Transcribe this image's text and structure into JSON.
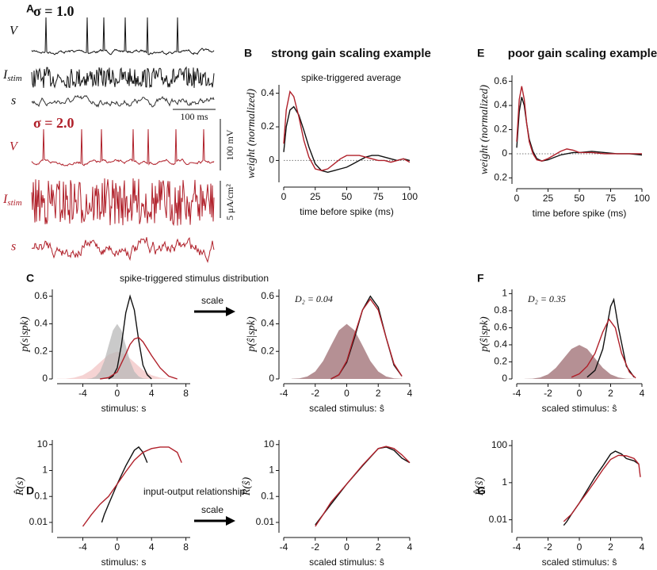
{
  "figure": {
    "panel_A": {
      "label": "A",
      "sigma1": "σ = 1.0",
      "sigma2": "σ = 2.0",
      "v1": "V",
      "i1": "I",
      "i1sub": "stim",
      "s1": "s",
      "time_scale": "100 ms",
      "v2": "V",
      "i2": "I",
      "i2sub": "stim",
      "s2": "s",
      "volt_scale": "100 mV",
      "current_scale": "5 μA/cm²"
    },
    "arrows": [
      "scale",
      "scale"
    ]
  },
  "chart_data": [
    {
      "type": "line",
      "panel": "B",
      "title": "strong gain scaling example",
      "subtitle": "spike-triggered average",
      "xlabel": "time before spike (ms)",
      "ylabel": "weight (normalized)",
      "zero_line": true,
      "xlim": [
        0,
        100
      ],
      "ylim": [
        -0.13,
        0.45
      ],
      "xticks": [
        0,
        25,
        50,
        75,
        100
      ],
      "yticks": [
        0,
        0.2,
        0.4
      ],
      "series": [
        {
          "color": "#111111",
          "x": [
            0,
            2,
            5,
            8,
            12,
            16,
            20,
            25,
            30,
            35,
            40,
            45,
            50,
            55,
            60,
            65,
            70,
            75,
            80,
            85,
            90,
            95,
            100
          ],
          "values": [
            0.05,
            0.2,
            0.3,
            0.32,
            0.27,
            0.18,
            0.08,
            -0.02,
            -0.06,
            -0.07,
            -0.06,
            -0.05,
            -0.04,
            -0.02,
            0,
            0.02,
            0.03,
            0.03,
            0.02,
            0.01,
            0,
            0.01,
            0
          ]
        },
        {
          "color": "#b0202a",
          "x": [
            0,
            2,
            5,
            8,
            12,
            16,
            20,
            25,
            30,
            35,
            40,
            45,
            50,
            55,
            60,
            65,
            70,
            75,
            80,
            85,
            90,
            95,
            100
          ],
          "values": [
            0.1,
            0.3,
            0.41,
            0.38,
            0.26,
            0.12,
            0.02,
            -0.05,
            -0.06,
            -0.05,
            -0.02,
            0.01,
            0.03,
            0.03,
            0.03,
            0.02,
            0.01,
            0,
            0,
            -0.01,
            0,
            0.01,
            -0.01
          ]
        }
      ]
    },
    {
      "type": "line",
      "panel": "E",
      "title": "poor gain scaling example",
      "xlabel": "time before spike (ms)",
      "ylabel": "weight (normalized)",
      "zero_line": true,
      "xlim": [
        0,
        100
      ],
      "ylim": [
        -0.25,
        0.65
      ],
      "xticks": [
        0,
        25,
        50,
        75,
        100
      ],
      "yticks": [
        {
          "value": -0.2,
          "label": "0.2"
        },
        0,
        0.2,
        0.4,
        0.6
      ],
      "series": [
        {
          "color": "#111111",
          "x": [
            0,
            2,
            4,
            6,
            8,
            10,
            13,
            16,
            20,
            25,
            30,
            35,
            40,
            45,
            50,
            60,
            70,
            80,
            90,
            100
          ],
          "values": [
            0.05,
            0.35,
            0.47,
            0.4,
            0.25,
            0.12,
            0.02,
            -0.04,
            -0.06,
            -0.05,
            -0.03,
            -0.01,
            0,
            0.01,
            0.01,
            0.02,
            0.01,
            0,
            0,
            -0.01
          ]
        },
        {
          "color": "#b0202a",
          "x": [
            0,
            2,
            4,
            6,
            8,
            10,
            13,
            16,
            20,
            25,
            30,
            35,
            40,
            45,
            50,
            60,
            70,
            80,
            90,
            100
          ],
          "values": [
            0.1,
            0.45,
            0.56,
            0.45,
            0.25,
            0.1,
            0,
            -0.05,
            -0.06,
            -0.04,
            -0.01,
            0.02,
            0.04,
            0.03,
            0.01,
            0.01,
            0,
            0,
            0,
            0
          ]
        }
      ]
    },
    {
      "type": "line",
      "panel": "C",
      "title": "spike-triggered stimulus distribution",
      "xlabel": "stimulus: s",
      "ylabel": "p(s|spk)",
      "xlim": [
        -7,
        8.5
      ],
      "ylim": [
        0,
        0.65
      ],
      "xticks": [
        -4,
        0,
        4,
        8
      ],
      "yticks": [
        0,
        0.2,
        0.4,
        0.6
      ],
      "series": [
        {
          "area": true,
          "color": "#f2c4c4",
          "x": [
            -7,
            -6,
            -5,
            -4,
            -3,
            -2,
            -1,
            0,
            1,
            2,
            3,
            4,
            5,
            6,
            7
          ],
          "values": [
            0.001,
            0.002,
            0.009,
            0.027,
            0.065,
            0.121,
            0.176,
            0.199,
            0.176,
            0.121,
            0.065,
            0.027,
            0.009,
            0.002,
            0.001
          ]
        },
        {
          "area": true,
          "color": "#b8b8b8",
          "x": [
            -3.5,
            -3,
            -2.5,
            -2,
            -1.5,
            -1,
            -0.5,
            0,
            0.5,
            1,
            1.5,
            2,
            2.5,
            3,
            3.5
          ],
          "values": [
            0.001,
            0.004,
            0.018,
            0.054,
            0.13,
            0.242,
            0.352,
            0.399,
            0.352,
            0.242,
            0.13,
            0.054,
            0.018,
            0.004,
            0.001
          ]
        },
        {
          "color": "#111111",
          "x": [
            -1,
            -0.5,
            0,
            0.5,
            1,
            1.5,
            2,
            2.5,
            3,
            3.5,
            4
          ],
          "values": [
            0,
            0.02,
            0.08,
            0.25,
            0.48,
            0.6,
            0.5,
            0.28,
            0.1,
            0.03,
            0
          ]
        },
        {
          "color": "#b0202a",
          "x": [
            -2,
            -1,
            0,
            1,
            1.5,
            2,
            2.5,
            3,
            4,
            5,
            6,
            7
          ],
          "values": [
            0,
            0.01,
            0.05,
            0.18,
            0.25,
            0.29,
            0.3,
            0.27,
            0.17,
            0.08,
            0.02,
            0
          ]
        }
      ]
    },
    {
      "type": "line",
      "annotation": "D₂ = 0.04",
      "xlabel": "scaled stimulus: ŝ",
      "ylabel": "p(ŝ|spk)",
      "xlim": [
        -4,
        4
      ],
      "ylim": [
        0,
        0.65
      ],
      "xticks": [
        -4,
        -2,
        0,
        2,
        4
      ],
      "yticks": [
        0,
        0.2,
        0.4,
        0.6
      ],
      "series": [
        {
          "area": true,
          "color": "#9c6b70",
          "x": [
            -3.5,
            -3,
            -2.5,
            -2,
            -1.5,
            -1,
            -0.5,
            0,
            0.5,
            1,
            1.5,
            2,
            2.5,
            3,
            3.5
          ],
          "values": [
            0.001,
            0.004,
            0.018,
            0.054,
            0.13,
            0.242,
            0.352,
            0.399,
            0.352,
            0.242,
            0.13,
            0.054,
            0.018,
            0.004,
            0.001
          ]
        },
        {
          "color": "#111111",
          "x": [
            -1,
            -0.5,
            0,
            0.5,
            1,
            1.5,
            2,
            2.5,
            3,
            3.5
          ],
          "values": [
            0,
            0.03,
            0.12,
            0.3,
            0.5,
            0.6,
            0.52,
            0.3,
            0.1,
            0.02
          ]
        },
        {
          "color": "#b0202a",
          "x": [
            -1,
            -0.5,
            0,
            0.5,
            1,
            1.5,
            2,
            2.5,
            3,
            3.5
          ],
          "values": [
            0,
            0.03,
            0.13,
            0.32,
            0.5,
            0.58,
            0.5,
            0.3,
            0.11,
            0.02
          ]
        }
      ]
    },
    {
      "type": "line",
      "panel": "F",
      "annotation": "D₂ = 0.35",
      "xlabel": "scaled stimulus: ŝ",
      "ylabel": "p(ŝ|spk)",
      "xlim": [
        -4,
        4
      ],
      "ylim": [
        0,
        1.05
      ],
      "xticks": [
        -4,
        -2,
        0,
        2,
        4
      ],
      "yticks": [
        0,
        0.2,
        0.4,
        0.6,
        0.8,
        1
      ],
      "series": [
        {
          "area": true,
          "color": "#9c6b70",
          "x": [
            -3.5,
            -3,
            -2.5,
            -2,
            -1.5,
            -1,
            -0.5,
            0,
            0.5,
            1,
            1.5,
            2,
            2.5,
            3,
            3.5
          ],
          "values": [
            0.001,
            0.004,
            0.018,
            0.054,
            0.13,
            0.242,
            0.352,
            0.399,
            0.352,
            0.242,
            0.13,
            0.054,
            0.018,
            0.004,
            0.001
          ]
        },
        {
          "color": "#111111",
          "x": [
            0.5,
            1,
            1.5,
            2,
            2.2,
            2.5,
            3,
            3.5
          ],
          "values": [
            0.02,
            0.1,
            0.35,
            0.85,
            0.93,
            0.6,
            0.15,
            0.02
          ]
        },
        {
          "color": "#b0202a",
          "x": [
            -0.5,
            0,
            0.5,
            1,
            1.5,
            1.9,
            2.3,
            2.7,
            3.2,
            3.6
          ],
          "values": [
            0.02,
            0.06,
            0.15,
            0.3,
            0.55,
            0.7,
            0.6,
            0.3,
            0.08,
            0.01
          ]
        }
      ]
    },
    {
      "type": "line",
      "panel": "D",
      "title": "input-output relationship",
      "yscale": "log",
      "xlabel": "stimulus: s",
      "ylabel": "R̂(s)",
      "xlim": [
        -7,
        8.5
      ],
      "ylim": [
        0.004,
        15
      ],
      "xticks": [
        -4,
        0,
        4,
        8
      ],
      "yticks": [
        0.01,
        0.1,
        1,
        10
      ],
      "series": [
        {
          "color": "#111111",
          "x": [
            -1.8,
            -1.5,
            -1,
            0,
            1,
            2,
            2.5,
            3,
            3.5
          ],
          "values": [
            0.01,
            0.02,
            0.05,
            0.3,
            1.5,
            6,
            8,
            5,
            2
          ]
        },
        {
          "color": "#b0202a",
          "x": [
            -4,
            -3,
            -2,
            -1,
            0,
            1,
            2,
            3,
            4,
            5,
            6,
            7,
            7.5
          ],
          "values": [
            0.007,
            0.02,
            0.05,
            0.1,
            0.3,
            0.9,
            2.5,
            5,
            7,
            8,
            8,
            5,
            2
          ]
        }
      ]
    },
    {
      "type": "line",
      "yscale": "log",
      "xlabel": "scaled stimulus: ŝ",
      "ylabel": "R̂(ŝ)",
      "xlim": [
        -4,
        4
      ],
      "ylim": [
        0.004,
        15
      ],
      "xticks": [
        -4,
        -2,
        0,
        2,
        4
      ],
      "yticks": [
        0.01,
        0.1,
        1,
        10
      ],
      "series": [
        {
          "color": "#111111",
          "x": [
            -2,
            -1.5,
            -1,
            0,
            1,
            2,
            2.5,
            3,
            3.5,
            4
          ],
          "values": [
            0.008,
            0.02,
            0.05,
            0.3,
            1.5,
            7,
            8,
            6,
            3,
            2
          ]
        },
        {
          "color": "#b0202a",
          "x": [
            -2,
            -1.5,
            -1,
            0,
            1,
            2,
            2.5,
            3,
            3.5,
            4
          ],
          "values": [
            0.007,
            0.02,
            0.06,
            0.3,
            1.6,
            7,
            8.5,
            7,
            4,
            2
          ]
        }
      ]
    },
    {
      "type": "line",
      "panel": "G",
      "yscale": "log",
      "xlabel": "scaled stimulus: ŝ",
      "ylabel": "R̂(ŝ)",
      "xlim": [
        -4,
        4
      ],
      "ylim": [
        0.002,
        200
      ],
      "xticks": [
        -4,
        -2,
        0,
        2,
        4
      ],
      "yticks": [
        0.01,
        1,
        100
      ],
      "series": [
        {
          "color": "#111111",
          "x": [
            -1,
            -0.8,
            -0.5,
            0,
            0.5,
            1,
            1.5,
            2,
            2.3,
            2.7,
            3,
            3.5,
            3.8
          ],
          "values": [
            0.005,
            0.008,
            0.02,
            0.08,
            0.4,
            2,
            8,
            35,
            50,
            35,
            20,
            15,
            10
          ]
        },
        {
          "color": "#b0202a",
          "x": [
            -1,
            -0.5,
            0,
            0.5,
            1,
            1.5,
            2,
            2.5,
            3,
            3.5,
            3.8,
            3.9
          ],
          "values": [
            0.008,
            0.02,
            0.08,
            0.3,
            1.2,
            5,
            18,
            30,
            28,
            20,
            10,
            2
          ]
        }
      ]
    }
  ]
}
